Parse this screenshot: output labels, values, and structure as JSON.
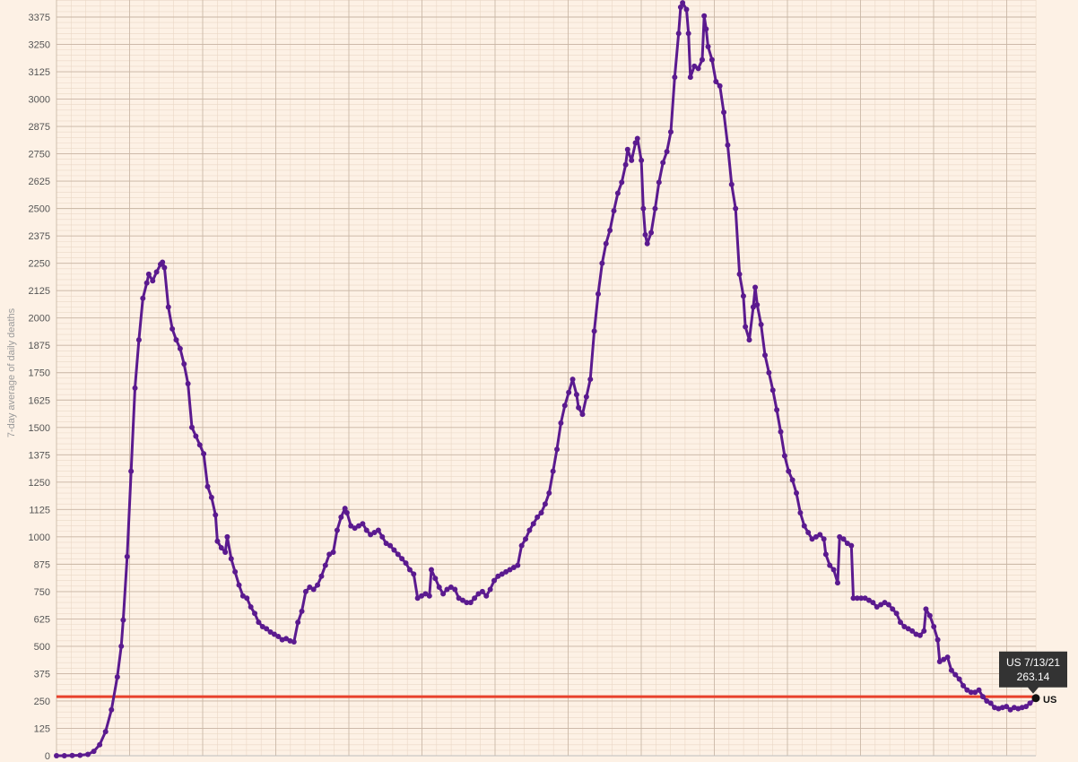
{
  "chart_data": {
    "type": "line",
    "ylabel": "7-day average of daily deaths",
    "ylim": [
      0,
      3375
    ],
    "yticks": [
      0,
      125,
      250,
      375,
      500,
      625,
      750,
      875,
      1000,
      1125,
      1250,
      1375,
      1500,
      1625,
      1750,
      1875,
      2000,
      2125,
      2250,
      2375,
      2500,
      2625,
      2750,
      2875,
      3000,
      3125,
      3250,
      3375
    ],
    "x_date_range": [
      "2020-03-01",
      "2021-07-13"
    ],
    "grid": true,
    "reference_line": {
      "y": 270,
      "color": "#e8412c"
    },
    "series": [
      {
        "name": "US",
        "color": "#5b1a8f",
        "points": [
          [
            "2020-03-01",
            0
          ],
          [
            "2020-03-05",
            0
          ],
          [
            "2020-03-09",
            1
          ],
          [
            "2020-03-13",
            2
          ],
          [
            "2020-03-17",
            6
          ],
          [
            "2020-03-20",
            20
          ],
          [
            "2020-03-23",
            50
          ],
          [
            "2020-03-26",
            110
          ],
          [
            "2020-03-29",
            210
          ],
          [
            "2020-04-01",
            360
          ],
          [
            "2020-04-03",
            500
          ],
          [
            "2020-04-04",
            620
          ],
          [
            "2020-04-06",
            910
          ],
          [
            "2020-04-08",
            1300
          ],
          [
            "2020-04-10",
            1680
          ],
          [
            "2020-04-12",
            1900
          ],
          [
            "2020-04-14",
            2090
          ],
          [
            "2020-04-16",
            2160
          ],
          [
            "2020-04-17",
            2200
          ],
          [
            "2020-04-19",
            2170
          ],
          [
            "2020-04-21",
            2210
          ],
          [
            "2020-04-23",
            2245
          ],
          [
            "2020-04-24",
            2255
          ],
          [
            "2020-04-25",
            2230
          ],
          [
            "2020-04-27",
            2050
          ],
          [
            "2020-04-29",
            1950
          ],
          [
            "2020-05-01",
            1900
          ],
          [
            "2020-05-03",
            1860
          ],
          [
            "2020-05-05",
            1790
          ],
          [
            "2020-05-07",
            1700
          ],
          [
            "2020-05-09",
            1500
          ],
          [
            "2020-05-11",
            1460
          ],
          [
            "2020-05-13",
            1420
          ],
          [
            "2020-05-15",
            1380
          ],
          [
            "2020-05-17",
            1230
          ],
          [
            "2020-05-19",
            1180
          ],
          [
            "2020-05-21",
            1100
          ],
          [
            "2020-05-22",
            980
          ],
          [
            "2020-05-24",
            950
          ],
          [
            "2020-05-26",
            930
          ],
          [
            "2020-05-27",
            1000
          ],
          [
            "2020-05-29",
            900
          ],
          [
            "2020-05-31",
            840
          ],
          [
            "2020-06-02",
            780
          ],
          [
            "2020-06-04",
            730
          ],
          [
            "2020-06-06",
            720
          ],
          [
            "2020-06-08",
            680
          ],
          [
            "2020-06-10",
            650
          ],
          [
            "2020-06-12",
            610
          ],
          [
            "2020-06-14",
            590
          ],
          [
            "2020-06-16",
            580
          ],
          [
            "2020-06-18",
            565
          ],
          [
            "2020-06-20",
            555
          ],
          [
            "2020-06-22",
            545
          ],
          [
            "2020-06-24",
            530
          ],
          [
            "2020-06-26",
            535
          ],
          [
            "2020-06-28",
            525
          ],
          [
            "2020-06-30",
            520
          ],
          [
            "2020-07-02",
            610
          ],
          [
            "2020-07-04",
            660
          ],
          [
            "2020-07-06",
            750
          ],
          [
            "2020-07-08",
            770
          ],
          [
            "2020-07-10",
            760
          ],
          [
            "2020-07-12",
            780
          ],
          [
            "2020-07-14",
            820
          ],
          [
            "2020-07-16",
            870
          ],
          [
            "2020-07-18",
            920
          ],
          [
            "2020-07-20",
            930
          ],
          [
            "2020-07-22",
            1030
          ],
          [
            "2020-07-24",
            1090
          ],
          [
            "2020-07-26",
            1130
          ],
          [
            "2020-07-27",
            1110
          ],
          [
            "2020-07-29",
            1050
          ],
          [
            "2020-07-31",
            1040
          ],
          [
            "2020-08-02",
            1050
          ],
          [
            "2020-08-04",
            1060
          ],
          [
            "2020-08-06",
            1030
          ],
          [
            "2020-08-08",
            1010
          ],
          [
            "2020-08-10",
            1020
          ],
          [
            "2020-08-12",
            1030
          ],
          [
            "2020-08-14",
            1000
          ],
          [
            "2020-08-16",
            970
          ],
          [
            "2020-08-18",
            960
          ],
          [
            "2020-08-20",
            940
          ],
          [
            "2020-08-22",
            920
          ],
          [
            "2020-08-24",
            900
          ],
          [
            "2020-08-26",
            880
          ],
          [
            "2020-08-28",
            850
          ],
          [
            "2020-08-30",
            830
          ],
          [
            "2020-09-01",
            720
          ],
          [
            "2020-09-03",
            730
          ],
          [
            "2020-09-05",
            740
          ],
          [
            "2020-09-07",
            730
          ],
          [
            "2020-09-08",
            850
          ],
          [
            "2020-09-10",
            810
          ],
          [
            "2020-09-12",
            770
          ],
          [
            "2020-09-14",
            740
          ],
          [
            "2020-09-16",
            760
          ],
          [
            "2020-09-18",
            770
          ],
          [
            "2020-09-20",
            760
          ],
          [
            "2020-09-22",
            720
          ],
          [
            "2020-09-24",
            710
          ],
          [
            "2020-09-26",
            700
          ],
          [
            "2020-09-28",
            700
          ],
          [
            "2020-09-30",
            720
          ],
          [
            "2020-10-02",
            740
          ],
          [
            "2020-10-04",
            750
          ],
          [
            "2020-10-06",
            730
          ],
          [
            "2020-10-08",
            760
          ],
          [
            "2020-10-10",
            800
          ],
          [
            "2020-10-12",
            820
          ],
          [
            "2020-10-14",
            830
          ],
          [
            "2020-10-16",
            840
          ],
          [
            "2020-10-18",
            850
          ],
          [
            "2020-10-20",
            860
          ],
          [
            "2020-10-22",
            870
          ],
          [
            "2020-10-24",
            960
          ],
          [
            "2020-10-26",
            990
          ],
          [
            "2020-10-28",
            1030
          ],
          [
            "2020-10-30",
            1060
          ],
          [
            "2020-11-01",
            1090
          ],
          [
            "2020-11-03",
            1110
          ],
          [
            "2020-11-05",
            1150
          ],
          [
            "2020-11-07",
            1200
          ],
          [
            "2020-11-09",
            1300
          ],
          [
            "2020-11-11",
            1400
          ],
          [
            "2020-11-13",
            1520
          ],
          [
            "2020-11-15",
            1600
          ],
          [
            "2020-11-17",
            1660
          ],
          [
            "2020-11-19",
            1720
          ],
          [
            "2020-11-21",
            1650
          ],
          [
            "2020-11-22",
            1590
          ],
          [
            "2020-11-24",
            1560
          ],
          [
            "2020-11-26",
            1640
          ],
          [
            "2020-11-28",
            1720
          ],
          [
            "2020-11-30",
            1940
          ],
          [
            "2020-12-02",
            2110
          ],
          [
            "2020-12-04",
            2250
          ],
          [
            "2020-12-06",
            2340
          ],
          [
            "2020-12-08",
            2400
          ],
          [
            "2020-12-10",
            2490
          ],
          [
            "2020-12-12",
            2570
          ],
          [
            "2020-12-14",
            2620
          ],
          [
            "2020-12-16",
            2700
          ],
          [
            "2020-12-17",
            2770
          ],
          [
            "2020-12-19",
            2720
          ],
          [
            "2020-12-21",
            2800
          ],
          [
            "2020-12-22",
            2820
          ],
          [
            "2020-12-24",
            2720
          ],
          [
            "2020-12-25",
            2500
          ],
          [
            "2020-12-26",
            2380
          ],
          [
            "2020-12-27",
            2340
          ],
          [
            "2020-12-29",
            2390
          ],
          [
            "2020-12-31",
            2500
          ],
          [
            "2021-01-02",
            2620
          ],
          [
            "2021-01-04",
            2710
          ],
          [
            "2021-01-06",
            2760
          ],
          [
            "2021-01-08",
            2850
          ],
          [
            "2021-01-10",
            3100
          ],
          [
            "2021-01-12",
            3300
          ],
          [
            "2021-01-13",
            3420
          ],
          [
            "2021-01-14",
            3440
          ],
          [
            "2021-01-16",
            3410
          ],
          [
            "2021-01-17",
            3300
          ],
          [
            "2021-01-18",
            3100
          ],
          [
            "2021-01-20",
            3150
          ],
          [
            "2021-01-22",
            3140
          ],
          [
            "2021-01-24",
            3180
          ],
          [
            "2021-01-25",
            3380
          ],
          [
            "2021-01-26",
            3320
          ],
          [
            "2021-01-27",
            3240
          ],
          [
            "2021-01-29",
            3180
          ],
          [
            "2021-01-31",
            3080
          ],
          [
            "2021-02-02",
            3060
          ],
          [
            "2021-02-04",
            2940
          ],
          [
            "2021-02-06",
            2790
          ],
          [
            "2021-02-08",
            2610
          ],
          [
            "2021-02-10",
            2500
          ],
          [
            "2021-02-12",
            2200
          ],
          [
            "2021-02-14",
            2100
          ],
          [
            "2021-02-15",
            1960
          ],
          [
            "2021-02-17",
            1900
          ],
          [
            "2021-02-19",
            2050
          ],
          [
            "2021-02-20",
            2140
          ],
          [
            "2021-02-21",
            2060
          ],
          [
            "2021-02-23",
            1970
          ],
          [
            "2021-02-25",
            1830
          ],
          [
            "2021-02-27",
            1750
          ],
          [
            "2021-03-01",
            1670
          ],
          [
            "2021-03-03",
            1580
          ],
          [
            "2021-03-05",
            1480
          ],
          [
            "2021-03-07",
            1370
          ],
          [
            "2021-03-09",
            1300
          ],
          [
            "2021-03-11",
            1260
          ],
          [
            "2021-03-13",
            1200
          ],
          [
            "2021-03-15",
            1110
          ],
          [
            "2021-03-17",
            1050
          ],
          [
            "2021-03-19",
            1020
          ],
          [
            "2021-03-21",
            990
          ],
          [
            "2021-03-23",
            1000
          ],
          [
            "2021-03-25",
            1010
          ],
          [
            "2021-03-27",
            990
          ],
          [
            "2021-03-28",
            920
          ],
          [
            "2021-03-30",
            870
          ],
          [
            "2021-04-01",
            850
          ],
          [
            "2021-04-03",
            790
          ],
          [
            "2021-04-04",
            1000
          ],
          [
            "2021-04-06",
            990
          ],
          [
            "2021-04-08",
            970
          ],
          [
            "2021-04-10",
            960
          ],
          [
            "2021-04-11",
            720
          ],
          [
            "2021-04-13",
            720
          ],
          [
            "2021-04-15",
            720
          ],
          [
            "2021-04-17",
            720
          ],
          [
            "2021-04-19",
            710
          ],
          [
            "2021-04-21",
            700
          ],
          [
            "2021-04-23",
            680
          ],
          [
            "2021-04-25",
            690
          ],
          [
            "2021-04-27",
            700
          ],
          [
            "2021-04-29",
            690
          ],
          [
            "2021-05-01",
            670
          ],
          [
            "2021-05-03",
            650
          ],
          [
            "2021-05-05",
            610
          ],
          [
            "2021-05-07",
            590
          ],
          [
            "2021-05-09",
            580
          ],
          [
            "2021-05-11",
            570
          ],
          [
            "2021-05-13",
            555
          ],
          [
            "2021-05-15",
            550
          ],
          [
            "2021-05-17",
            570
          ],
          [
            "2021-05-18",
            670
          ],
          [
            "2021-05-20",
            640
          ],
          [
            "2021-05-22",
            590
          ],
          [
            "2021-05-24",
            530
          ],
          [
            "2021-05-25",
            430
          ],
          [
            "2021-05-27",
            440
          ],
          [
            "2021-05-29",
            450
          ],
          [
            "2021-05-31",
            390
          ],
          [
            "2021-06-02",
            370
          ],
          [
            "2021-06-04",
            350
          ],
          [
            "2021-06-06",
            320
          ],
          [
            "2021-06-08",
            300
          ],
          [
            "2021-06-10",
            290
          ],
          [
            "2021-06-12",
            290
          ],
          [
            "2021-06-14",
            300
          ],
          [
            "2021-06-16",
            270
          ],
          [
            "2021-06-18",
            250
          ],
          [
            "2021-06-20",
            240
          ],
          [
            "2021-06-22",
            220
          ],
          [
            "2021-06-24",
            215
          ],
          [
            "2021-06-26",
            220
          ],
          [
            "2021-06-28",
            225
          ],
          [
            "2021-06-30",
            210
          ],
          [
            "2021-07-02",
            220
          ],
          [
            "2021-07-04",
            215
          ],
          [
            "2021-07-06",
            220
          ],
          [
            "2021-07-08",
            225
          ],
          [
            "2021-07-10",
            240
          ],
          [
            "2021-07-13",
            263.14
          ]
        ]
      }
    ],
    "tooltip": {
      "line1": "US 7/13/21",
      "line2": "263.14"
    },
    "end_label": "US"
  }
}
